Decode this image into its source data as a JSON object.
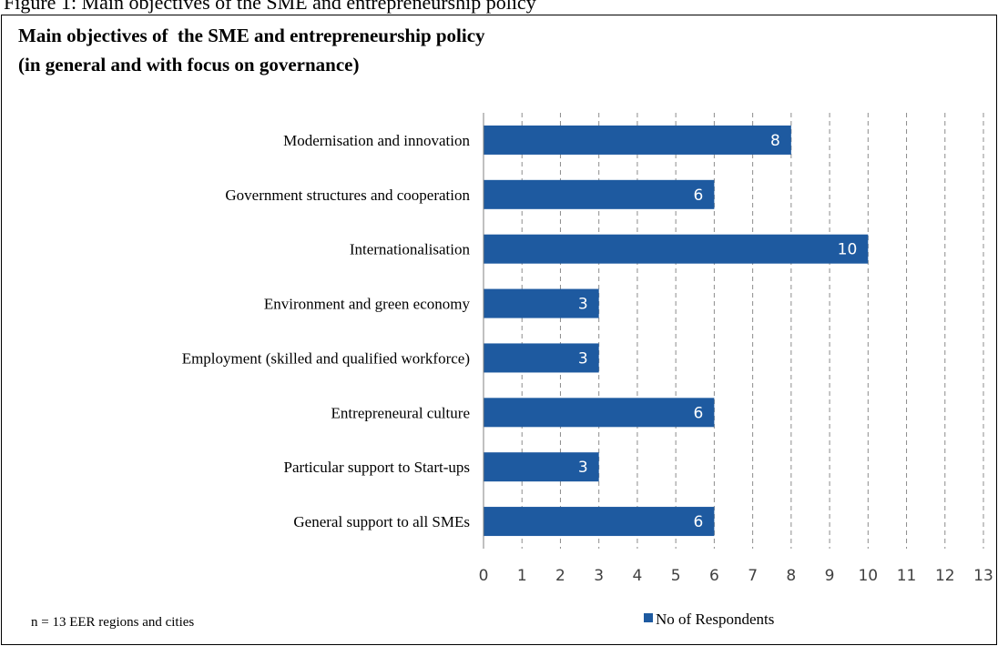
{
  "header_fragment": "Figure 1: Main objectives of the SME and entrepreneurship policy",
  "chart_data": {
    "type": "bar",
    "orientation": "horizontal",
    "title": "Main objectives of  the SME and entrepreneurship policy",
    "subtitle": "(in general and with focus on governance)",
    "categories": [
      "Modernisation and innovation",
      "Government structures and cooperation",
      "Internationalisation",
      "Environment and green economy",
      "Employment (skilled and qualified workforce)",
      "Entrepreneural culture",
      "Particular support to Start-ups",
      "General support to all SMEs"
    ],
    "series": [
      {
        "name": "No of Respondents",
        "values": [
          8,
          6,
          10,
          3,
          3,
          6,
          3,
          6
        ]
      }
    ],
    "xlim": [
      0,
      13
    ],
    "xticks": [
      "0",
      "1",
      "2",
      "3",
      "4",
      "5",
      "6",
      "7",
      "8",
      "9",
      "10",
      "11",
      "12",
      "13"
    ],
    "grid": "vertical-dashed",
    "data_labels": true,
    "legend_position": "bottom",
    "bar_color": "#1e5aa0",
    "footnote": "n = 13 EER regions and cities"
  }
}
